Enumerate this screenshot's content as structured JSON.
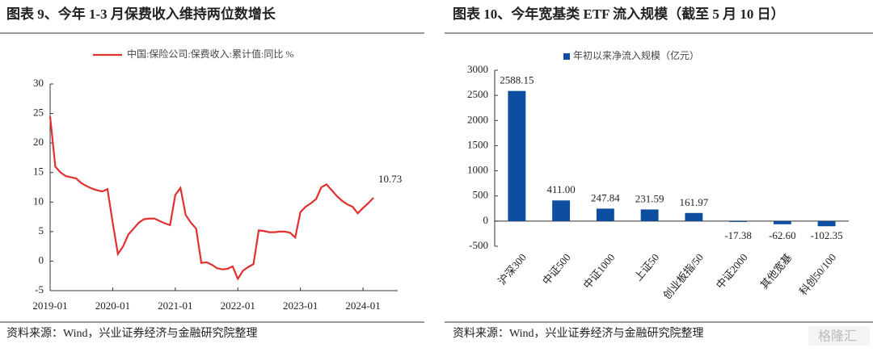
{
  "chart_data": [
    {
      "type": "line",
      "title": "图表 9、今年 1-3 月保费收入维持两位数增长",
      "source": "资料来源：Wind，兴业证券经济与金融研究院整理",
      "categories": [
        "2019-01",
        "2019-02",
        "2019-03",
        "2019-04",
        "2019-05",
        "2019-06",
        "2019-07",
        "2019-08",
        "2019-09",
        "2019-10",
        "2019-11",
        "2019-12",
        "2020-01",
        "2020-02",
        "2020-03",
        "2020-04",
        "2020-05",
        "2020-06",
        "2020-07",
        "2020-08",
        "2020-09",
        "2020-10",
        "2020-11",
        "2020-12",
        "2021-01",
        "2021-02",
        "2021-03",
        "2021-04",
        "2021-05",
        "2021-06",
        "2021-07",
        "2021-08",
        "2021-09",
        "2021-10",
        "2021-11",
        "2021-12",
        "2022-01",
        "2022-02",
        "2022-03",
        "2022-04",
        "2022-05",
        "2022-06",
        "2022-07",
        "2022-08",
        "2022-09",
        "2022-10",
        "2022-11",
        "2022-12",
        "2023-01",
        "2023-02",
        "2023-03",
        "2023-04",
        "2023-05",
        "2023-06",
        "2023-07",
        "2023-08",
        "2023-09",
        "2023-10",
        "2023-11",
        "2023-12",
        "2024-01",
        "2024-02",
        "2024-03"
      ],
      "series": [
        {
          "name": "中国:保险公司:保费收入:累计值:同比 %",
          "color": "#e03030",
          "values": [
            24.5,
            16,
            15,
            14.4,
            14.2,
            14,
            13.2,
            12.7,
            12.3,
            12,
            11.8,
            12.2,
            6.5,
            1.2,
            2.5,
            4.5,
            5.5,
            6.5,
            7.1,
            7.2,
            7.2,
            6.8,
            6.4,
            6.1,
            11.2,
            12.4,
            7.8,
            6.5,
            5.5,
            -0.3,
            -0.2,
            -0.6,
            -1.2,
            -1.4,
            -1.3,
            -0.9,
            -3,
            -1.6,
            -1,
            -0.5,
            5.2,
            5.1,
            4.9,
            4.9,
            5,
            5,
            4.8,
            4,
            8.3,
            9.2,
            9.8,
            10.5,
            12.5,
            13,
            12,
            11,
            10.2,
            9.6,
            9.2,
            8.1,
            9,
            9.8,
            10.73
          ]
        }
      ],
      "xticks": [
        "2019-01",
        "2020-01",
        "2021-01",
        "2022-01",
        "2023-01",
        "2024-01"
      ],
      "ylim": [
        -5,
        30
      ],
      "yticks": [
        -5,
        0,
        5,
        10,
        15,
        20,
        25,
        30
      ],
      "grid": false
    },
    {
      "type": "bar",
      "title": "图表 10、今年宽基类 ETF 流入规模（截至 5 月 10 日）",
      "source": "资料来源：Wind，兴业证券经济与金融研究院整理",
      "categories": [
        "沪深300",
        "中证500",
        "中证1000",
        "上证50",
        "创业板指/50",
        "中证2000",
        "其他宽基",
        "科创50/100"
      ],
      "series": [
        {
          "name": "年初以来净流入规模（亿元）",
          "color": "#0d4ea0",
          "values": [
            2588.15,
            411,
            247.84,
            231.59,
            161.97,
            -17.38,
            -62.6,
            -102.35
          ],
          "value_labels": [
            "2588.15",
            "411.00",
            "247.84",
            "231.59",
            "161.97",
            "-17.38",
            "-62.60",
            "-102.35"
          ]
        }
      ],
      "ylim": [
        -500,
        3000
      ],
      "yticks": [
        -500,
        0,
        500,
        1000,
        1500,
        2000,
        2500,
        3000
      ],
      "grid": false
    }
  ],
  "watermark": "格隆汇"
}
